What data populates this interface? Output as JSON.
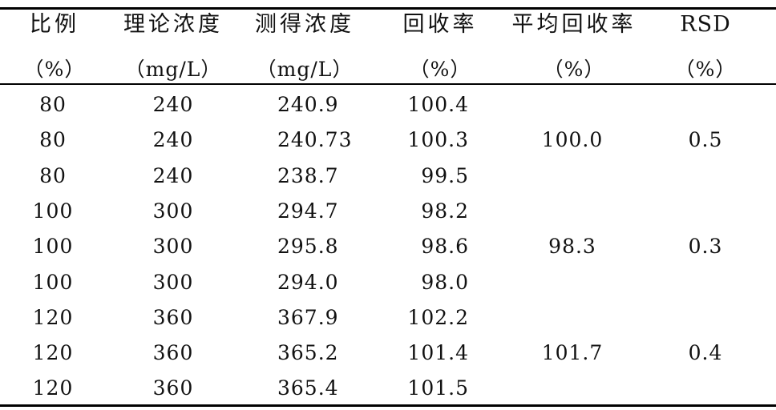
{
  "table": {
    "headers": [
      {
        "name": "比例",
        "unit": "（%）"
      },
      {
        "name": "理论浓度",
        "unit": "（mg/L）"
      },
      {
        "name": "测得浓度",
        "unit": "（mg/L）"
      },
      {
        "name": "回收率",
        "unit": "（%）"
      },
      {
        "name": "平均回收率",
        "unit": "（%）"
      },
      {
        "name": "RSD",
        "unit": "（%）"
      }
    ],
    "rows": [
      {
        "ratio": "80",
        "theoretical": "240",
        "measured": "240.9",
        "recovery": "100.4"
      },
      {
        "ratio": "80",
        "theoretical": "240",
        "measured": "240.73",
        "recovery": "100.3"
      },
      {
        "ratio": "80",
        "theoretical": "240",
        "measured": "238.7",
        "recovery": "99.5"
      },
      {
        "ratio": "100",
        "theoretical": "300",
        "measured": "294.7",
        "recovery": "98.2"
      },
      {
        "ratio": "100",
        "theoretical": "300",
        "measured": "295.8",
        "recovery": "98.6"
      },
      {
        "ratio": "100",
        "theoretical": "300",
        "measured": "294.0",
        "recovery": "98.0"
      },
      {
        "ratio": "120",
        "theoretical": "360",
        "measured": "367.9",
        "recovery": "102.2"
      },
      {
        "ratio": "120",
        "theoretical": "360",
        "measured": "365.2",
        "recovery": "101.4"
      },
      {
        "ratio": "120",
        "theoretical": "360",
        "measured": "365.4",
        "recovery": "101.5"
      }
    ],
    "groups": [
      {
        "avg_recovery": "100.0",
        "rsd": "0.5"
      },
      {
        "avg_recovery": "98.3",
        "rsd": "0.3"
      },
      {
        "avg_recovery": "101.7",
        "rsd": "0.4"
      }
    ]
  }
}
